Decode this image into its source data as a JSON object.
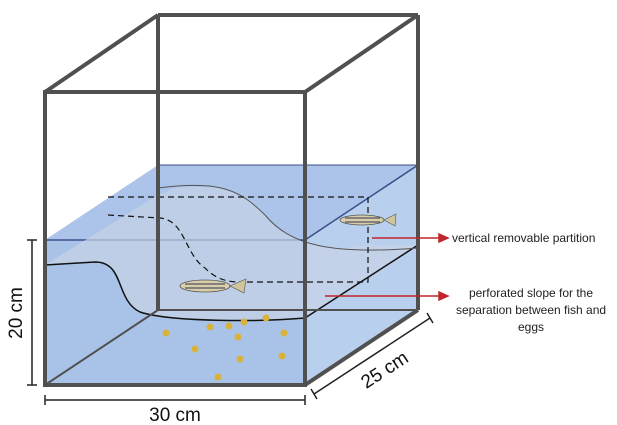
{
  "labels": {
    "partition": "vertical removable partition",
    "slope": [
      "perforated slope for the",
      "separation between fish and",
      "eggs"
    ]
  },
  "dimensions": {
    "height": "20 cm",
    "depth": "25 cm",
    "width": "30 cm"
  }
}
